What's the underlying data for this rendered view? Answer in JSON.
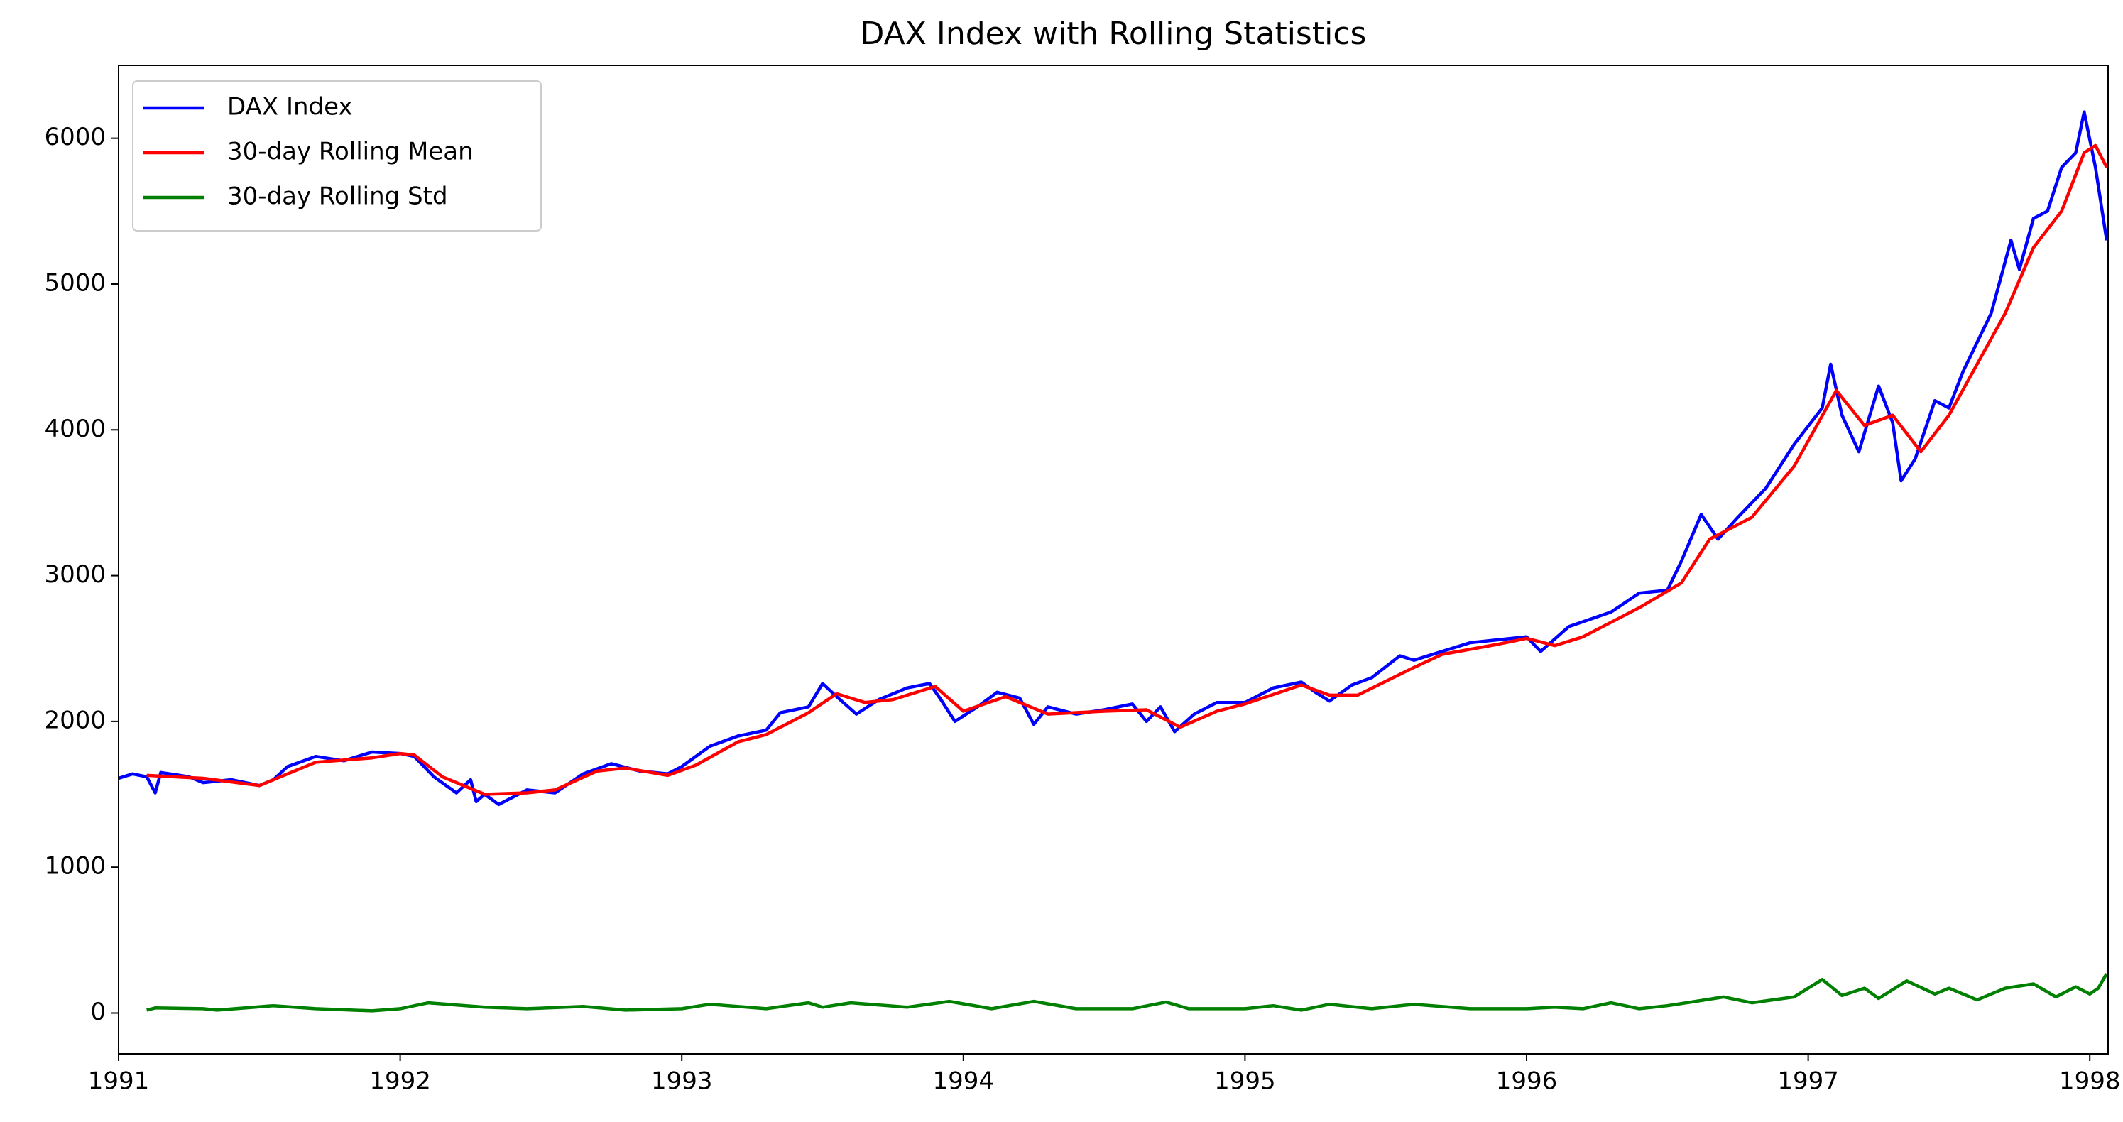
{
  "chart_data": {
    "type": "line",
    "title": "DAX Index with Rolling Statistics",
    "xlim": [
      1991,
      1998.065
    ],
    "xticks": [
      1991,
      1992,
      1993,
      1994,
      1995,
      1996,
      1997,
      1998
    ],
    "ylim": [
      -280,
      6500
    ],
    "yticks": [
      0,
      1000,
      2000,
      3000,
      4000,
      5000,
      6000
    ],
    "legend": "upper left",
    "grid": false,
    "series": [
      {
        "name": "DAX Index",
        "color": "#0000ff",
        "x": [
          1991.0,
          1991.05,
          1991.1,
          1991.13,
          1991.15,
          1991.25,
          1991.3,
          1991.4,
          1991.5,
          1991.55,
          1991.6,
          1991.7,
          1991.8,
          1991.9,
          1992.0,
          1992.05,
          1992.12,
          1992.2,
          1992.25,
          1992.27,
          1992.3,
          1992.35,
          1992.45,
          1992.55,
          1992.65,
          1992.75,
          1992.85,
          1992.95,
          1993.0,
          1993.1,
          1993.2,
          1993.3,
          1993.35,
          1993.45,
          1993.5,
          1993.55,
          1993.62,
          1993.7,
          1993.8,
          1993.88,
          1993.92,
          1993.97,
          1994.05,
          1994.12,
          1994.2,
          1994.25,
          1994.3,
          1994.4,
          1994.5,
          1994.6,
          1994.65,
          1994.7,
          1994.75,
          1994.82,
          1994.9,
          1995.0,
          1995.1,
          1995.2,
          1995.25,
          1995.3,
          1995.38,
          1995.45,
          1995.55,
          1995.6,
          1995.7,
          1995.8,
          1995.9,
          1996.0,
          1996.05,
          1996.15,
          1996.3,
          1996.4,
          1996.5,
          1996.55,
          1996.62,
          1996.68,
          1996.75,
          1996.85,
          1996.95,
          1997.05,
          1997.08,
          1997.12,
          1997.18,
          1997.25,
          1997.3,
          1997.33,
          1997.38,
          1997.45,
          1997.5,
          1997.55,
          1997.65,
          1997.72,
          1997.75,
          1997.8,
          1997.85,
          1997.9,
          1997.95,
          1997.98,
          1998.02,
          1998.06
        ],
        "values": [
          1610,
          1640,
          1620,
          1510,
          1650,
          1620,
          1580,
          1600,
          1560,
          1600,
          1690,
          1760,
          1730,
          1790,
          1780,
          1760,
          1620,
          1510,
          1600,
          1450,
          1500,
          1430,
          1530,
          1510,
          1640,
          1710,
          1660,
          1640,
          1690,
          1830,
          1900,
          1940,
          2060,
          2100,
          2260,
          2170,
          2050,
          2150,
          2230,
          2260,
          2150,
          2000,
          2100,
          2200,
          2160,
          1980,
          2100,
          2050,
          2080,
          2120,
          2000,
          2100,
          1930,
          2050,
          2130,
          2130,
          2230,
          2270,
          2200,
          2140,
          2250,
          2300,
          2450,
          2420,
          2480,
          2540,
          2560,
          2580,
          2480,
          2650,
          2750,
          2880,
          2900,
          3100,
          3420,
          3250,
          3400,
          3600,
          3900,
          4150,
          4450,
          4100,
          3850,
          4300,
          4050,
          3650,
          3800,
          4200,
          4150,
          4400,
          4800,
          5300,
          5100,
          5450,
          5500,
          5800,
          5900,
          6180,
          5800,
          5300
        ]
      },
      {
        "name": "30-day Rolling Mean",
        "color": "#ff0000",
        "x": [
          1991.1,
          1991.3,
          1991.5,
          1991.7,
          1991.9,
          1992.0,
          1992.05,
          1992.15,
          1992.3,
          1992.45,
          1992.55,
          1992.7,
          1992.8,
          1992.95,
          1993.05,
          1993.2,
          1993.3,
          1993.45,
          1993.55,
          1993.65,
          1993.75,
          1993.9,
          1994.0,
          1994.15,
          1994.3,
          1994.5,
          1994.65,
          1994.77,
          1994.9,
          1995.0,
          1995.2,
          1995.3,
          1995.4,
          1995.6,
          1995.7,
          1995.9,
          1996.0,
          1996.1,
          1996.2,
          1996.4,
          1996.55,
          1996.65,
          1996.8,
          1996.95,
          1997.1,
          1997.2,
          1997.3,
          1997.4,
          1997.5,
          1997.7,
          1997.8,
          1997.9,
          1997.98,
          1998.02,
          1998.06
        ],
        "values": [
          1630,
          1610,
          1560,
          1720,
          1750,
          1780,
          1770,
          1620,
          1500,
          1510,
          1530,
          1660,
          1680,
          1630,
          1700,
          1860,
          1910,
          2060,
          2190,
          2130,
          2150,
          2240,
          2070,
          2170,
          2050,
          2070,
          2080,
          1960,
          2070,
          2120,
          2250,
          2180,
          2180,
          2370,
          2460,
          2530,
          2570,
          2520,
          2580,
          2780,
          2950,
          3250,
          3400,
          3750,
          4270,
          4030,
          4100,
          3850,
          4100,
          4800,
          5250,
          5500,
          5900,
          5950,
          5800
        ]
      },
      {
        "name": "30-day Rolling Std",
        "color": "#008000",
        "x": [
          1991.1,
          1991.13,
          1991.3,
          1991.35,
          1991.55,
          1991.7,
          1991.9,
          1992.0,
          1992.1,
          1992.3,
          1992.45,
          1992.65,
          1992.8,
          1993.0,
          1993.1,
          1993.3,
          1993.45,
          1993.5,
          1993.6,
          1993.8,
          1993.95,
          1994.1,
          1994.25,
          1994.4,
          1994.6,
          1994.72,
          1994.8,
          1995.0,
          1995.1,
          1995.2,
          1995.3,
          1995.45,
          1995.6,
          1995.8,
          1996.0,
          1996.1,
          1996.2,
          1996.3,
          1996.4,
          1996.5,
          1996.6,
          1996.7,
          1996.8,
          1996.95,
          1997.05,
          1997.12,
          1997.2,
          1997.25,
          1997.35,
          1997.45,
          1997.5,
          1997.6,
          1997.7,
          1997.8,
          1997.88,
          1997.95,
          1998.0,
          1998.03,
          1998.06
        ],
        "values": [
          20,
          35,
          30,
          20,
          50,
          30,
          15,
          30,
          70,
          40,
          30,
          45,
          20,
          30,
          60,
          30,
          70,
          40,
          70,
          40,
          80,
          30,
          80,
          30,
          30,
          75,
          30,
          30,
          50,
          20,
          60,
          30,
          60,
          30,
          30,
          40,
          30,
          70,
          30,
          50,
          80,
          110,
          70,
          110,
          230,
          120,
          170,
          100,
          220,
          130,
          170,
          90,
          170,
          200,
          110,
          180,
          130,
          170,
          270
        ]
      }
    ]
  }
}
